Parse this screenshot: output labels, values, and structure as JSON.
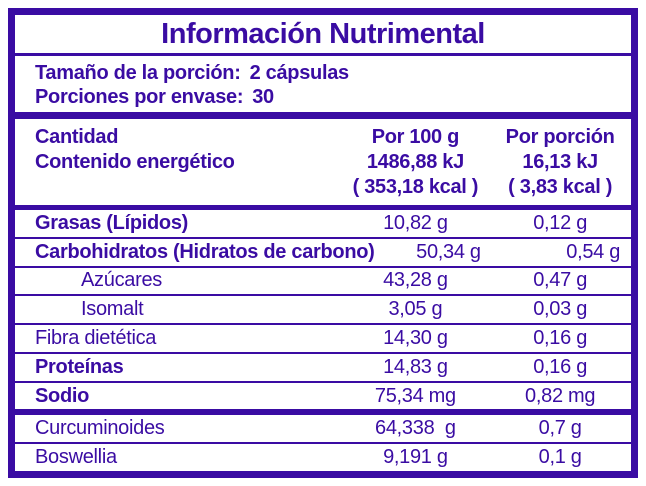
{
  "colors": {
    "primary": "#3A0CA3",
    "background": "#FFFFFF"
  },
  "header": {
    "title": "Información Nutrimental"
  },
  "serving": {
    "size_label": "Tamaño de la porción:",
    "size_value": "2 cápsulas",
    "count_label": "Porciones por envase:",
    "count_value": "30"
  },
  "energy": {
    "quantity_label": "Cantidad",
    "per100_header": "Por 100 g",
    "portion_header": "Por porción",
    "energy_label": "Contenido energético",
    "per100_kj": "1486,88 kJ",
    "portion_kj": "16,13 kJ",
    "per100_kcal": "( 353,18 kcal )",
    "portion_kcal": "( 3,83 kcal )"
  },
  "rows": [
    {
      "label": "Grasas (Lípidos)",
      "per100": "10,82 g",
      "portion": "0,12 g",
      "bold": true,
      "indent": false,
      "sep": "thin"
    },
    {
      "label": "Carbohidratos (Hidratos de carbono)",
      "per100": "50,34 g",
      "portion": "0,54 g",
      "bold": true,
      "indent": false,
      "sep": "thin"
    },
    {
      "label": "Azúcares",
      "per100": "43,28 g",
      "portion": "0,47 g",
      "bold": false,
      "indent": true,
      "sep": "thin"
    },
    {
      "label": "Isomalt",
      "per100": "3,05 g",
      "portion": "0,03 g",
      "bold": false,
      "indent": true,
      "sep": "thin"
    },
    {
      "label": "Fibra dietética",
      "per100": "14,30 g",
      "portion": "0,16 g",
      "bold": false,
      "indent": false,
      "sep": "thin"
    },
    {
      "label": "Proteínas",
      "per100": "14,83 g",
      "portion": "0,16 g",
      "bold": true,
      "indent": false,
      "sep": "thin"
    },
    {
      "label": "Sodio",
      "per100": "75,34 mg",
      "portion": "0,82 mg",
      "bold": true,
      "indent": false,
      "sep": "thick"
    },
    {
      "label": "Curcuminoides",
      "per100": "64,338  g",
      "portion": "0,7 g",
      "bold": false,
      "indent": false,
      "sep": "thin"
    },
    {
      "label": "Boswellia",
      "per100": "9,191 g",
      "portion": "0,1 g",
      "bold": false,
      "indent": false,
      "sep": "none"
    }
  ]
}
